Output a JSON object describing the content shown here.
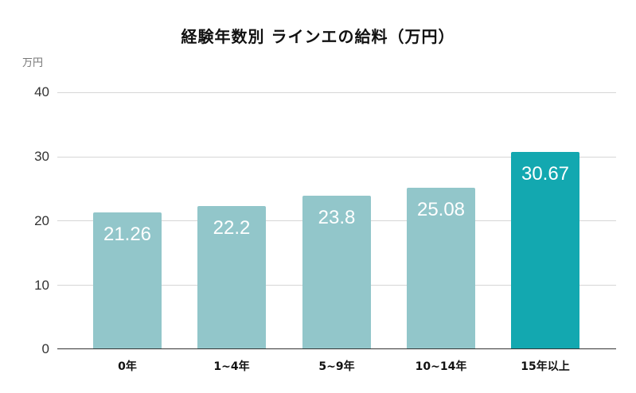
{
  "chart_data": {
    "type": "bar",
    "title": "経験年数別 ラインエの給料（万円）",
    "xlabel": "",
    "ylabel": "万円",
    "ylim": [
      0,
      40
    ],
    "yticks": [
      "0",
      "10",
      "20",
      "30",
      "40"
    ],
    "grid": true,
    "legend": "none",
    "categories": [
      "0年",
      "1~4年",
      "5~9年",
      "10~14年",
      "15年以上"
    ],
    "values": [
      21.26,
      22.2,
      23.8,
      25.08,
      30.67
    ],
    "value_labels": [
      "21.26",
      "22.2",
      "23.8",
      "25.08",
      "30.67"
    ],
    "colors": [
      "#92c6ca",
      "#92c6ca",
      "#92c6ca",
      "#92c6ca",
      "#13a8b0"
    ]
  }
}
